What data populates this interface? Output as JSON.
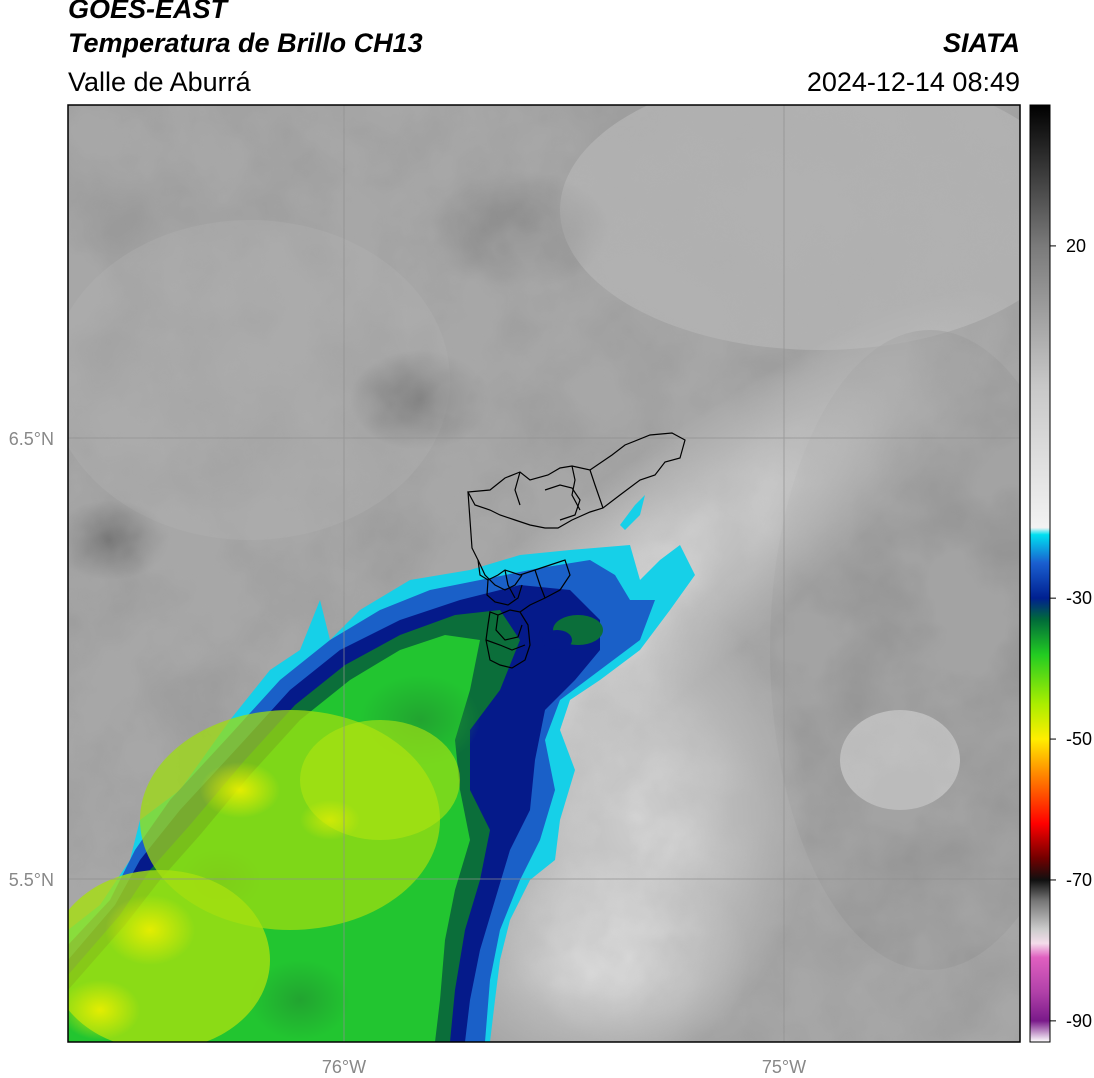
{
  "header": {
    "satellite": "GOES-EAST",
    "product": "Temperatura de Brillo CH13",
    "region": "Valle de Aburrá",
    "source": "SIATA",
    "datetime": "2024-12-14 08:49"
  },
  "map": {
    "lon_labels": [
      "76°W",
      "75°W"
    ],
    "lat_labels": [
      "6.5°N",
      "5.5°N"
    ]
  },
  "colorbar": {
    "tick_labels": [
      "20",
      "-30",
      "-50",
      "-70",
      "-90"
    ],
    "tick_values": [
      20,
      -30,
      -50,
      -70,
      -90
    ],
    "range": [
      -93,
      40
    ],
    "stops": [
      {
        "v": -93,
        "c": "#ffffff"
      },
      {
        "v": -90,
        "c": "#7a1a8a"
      },
      {
        "v": -86,
        "c": "#b040a8"
      },
      {
        "v": -81,
        "c": "#e060c0"
      },
      {
        "v": -79,
        "c": "#f4dcea"
      },
      {
        "v": -77,
        "c": "#cccccc"
      },
      {
        "v": -73,
        "c": "#777777"
      },
      {
        "v": -70,
        "c": "#101010"
      },
      {
        "v": -67,
        "c": "#700000"
      },
      {
        "v": -62,
        "c": "#ff0000"
      },
      {
        "v": -55,
        "c": "#ff8800"
      },
      {
        "v": -50,
        "c": "#ffee00"
      },
      {
        "v": -45,
        "c": "#aaee00"
      },
      {
        "v": -38,
        "c": "#22cc22"
      },
      {
        "v": -33,
        "c": "#006a3a"
      },
      {
        "v": -30,
        "c": "#002090"
      },
      {
        "v": -25,
        "c": "#1a5fd0"
      },
      {
        "v": -21,
        "c": "#00e0f0"
      },
      {
        "v": -20,
        "c": "#f2f2f2"
      },
      {
        "v": 0,
        "c": "#c8c8c8"
      },
      {
        "v": 20,
        "c": "#7a7a7a"
      },
      {
        "v": 40,
        "c": "#000000"
      }
    ]
  }
}
